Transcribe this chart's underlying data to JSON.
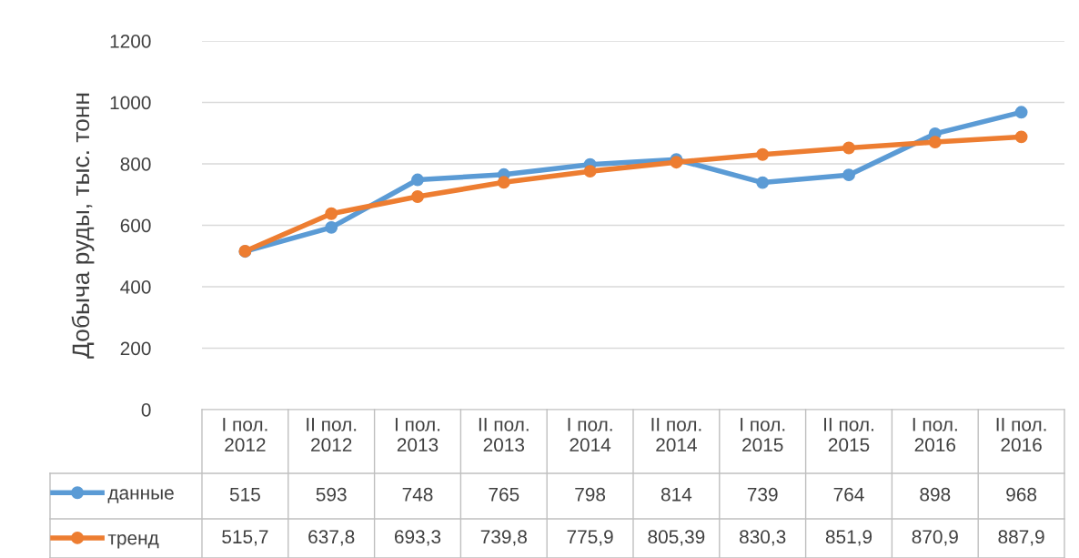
{
  "chart_data": {
    "type": "line",
    "ylabel": "Добыча руды, тыс. тонн",
    "categories": [
      "I пол.\n2012",
      "II пол.\n2012",
      "I пол.\n2013",
      "II пол.\n2013",
      "I пол.\n2014",
      "II пол.\n2014",
      "I пол.\n2015",
      "II пол.\n2015",
      "I пол.\n2016",
      "II пол.\n2016"
    ],
    "series": [
      {
        "name": "данные",
        "color": "#5b9bd5",
        "values": [
          515,
          593,
          748,
          765,
          798,
          814,
          739,
          764,
          898,
          968
        ],
        "value_labels": [
          "515",
          "593",
          "748",
          "765",
          "798",
          "814",
          "739",
          "764",
          "898",
          "968"
        ]
      },
      {
        "name": "тренд",
        "color": "#ed7d31",
        "values": [
          515.7,
          637.8,
          693.3,
          739.8,
          775.9,
          805.39,
          830.3,
          851.9,
          870.9,
          887.9
        ],
        "value_labels": [
          "515,7",
          "637,8",
          "693,3",
          "739,8",
          "775,9",
          "805,39",
          "830,3",
          "851,9",
          "870,9",
          "887,9"
        ]
      }
    ],
    "ylim": [
      0,
      1200
    ],
    "yticks": [
      0,
      200,
      400,
      600,
      800,
      1000,
      1200
    ],
    "grid": "y",
    "legend": "bottom",
    "marker": "circle",
    "line_style": "solid"
  }
}
